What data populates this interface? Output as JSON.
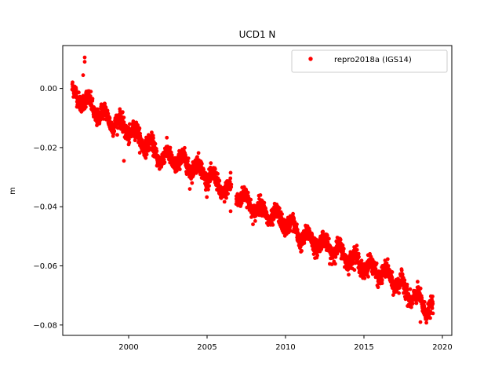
{
  "chart_data": {
    "type": "scatter",
    "title": "UCD1 N",
    "xlabel": "",
    "ylabel": "m",
    "xlim": [
      1995.8,
      2020.6
    ],
    "ylim": [
      -0.0835,
      0.0145
    ],
    "xticks": [
      2000,
      2005,
      2010,
      2015,
      2020
    ],
    "yticks": [
      0.0,
      -0.02,
      -0.04,
      -0.06,
      -0.08
    ],
    "ytick_labels": [
      "0.00",
      "−0.02",
      "−0.04",
      "−0.06",
      "−0.08"
    ],
    "legend_position": "top-right",
    "series": [
      {
        "name": "repro2018a (IGS14)",
        "color": "#ff0000",
        "marker": "circle",
        "trend_points": [
          [
            1996.4,
            -0.002
          ],
          [
            1997.0,
            -0.003
          ],
          [
            1998.0,
            -0.008
          ],
          [
            1999.0,
            -0.011
          ],
          [
            2000.0,
            -0.014
          ],
          [
            2001.0,
            -0.018
          ],
          [
            2002.0,
            -0.023
          ],
          [
            2003.0,
            -0.024
          ],
          [
            2004.0,
            -0.026
          ],
          [
            2005.0,
            -0.029
          ],
          [
            2006.0,
            -0.034
          ],
          [
            2007.0,
            -0.036
          ],
          [
            2008.0,
            -0.04
          ],
          [
            2009.0,
            -0.043
          ],
          [
            2010.0,
            -0.045
          ],
          [
            2011.0,
            -0.05
          ],
          [
            2012.0,
            -0.052
          ],
          [
            2013.0,
            -0.054
          ],
          [
            2014.0,
            -0.057
          ],
          [
            2015.0,
            -0.06
          ],
          [
            2016.0,
            -0.062
          ],
          [
            2017.0,
            -0.065
          ],
          [
            2018.0,
            -0.07
          ],
          [
            2019.0,
            -0.074
          ],
          [
            2019.4,
            -0.075
          ]
        ],
        "outliers": [
          [
            1997.2,
            0.0105
          ],
          [
            1997.2,
            0.009
          ],
          [
            1997.1,
            0.0045
          ],
          [
            1999.7,
            -0.0245
          ],
          [
            2006.5,
            -0.0285
          ],
          [
            2006.5,
            -0.0415
          ],
          [
            2003.9,
            -0.034
          ],
          [
            2018.6,
            -0.079
          ]
        ]
      }
    ]
  }
}
